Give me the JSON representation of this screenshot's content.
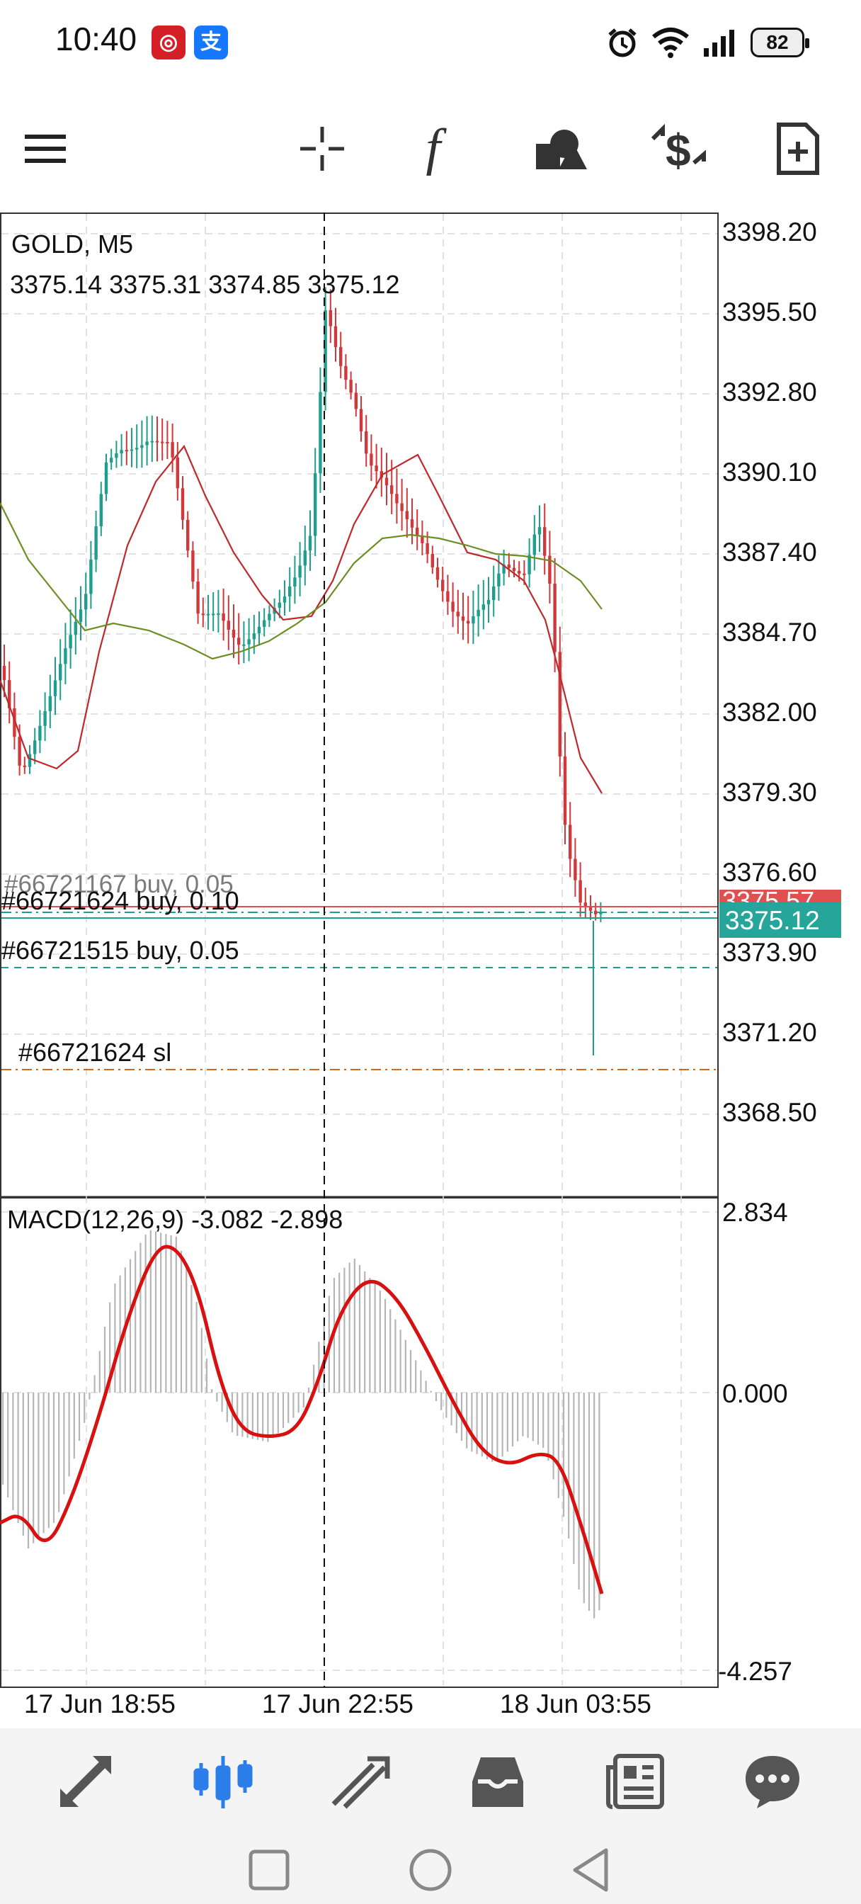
{
  "status_bar": {
    "time": "10:40",
    "app_badges": [
      {
        "glyph": "⊙",
        "color": "#d41f26",
        "icon": "union-pay-app-icon"
      },
      {
        "glyph": "支",
        "color": "#1677ff",
        "icon": "alipay-app-icon"
      }
    ],
    "battery": "82"
  },
  "toolbar": {
    "items": [
      "menu-icon",
      "crosshair-icon",
      "indicators-icon",
      "objects-icon",
      "trade-icon",
      "new-order-icon"
    ]
  },
  "chart": {
    "symbol_label": "GOLD, M5",
    "ohlc_label": "3375.14 3375.31 3374.85 3375.12",
    "price_axis_ticks": [
      "3398.20",
      "3395.50",
      "3392.80",
      "3390.10",
      "3387.40",
      "3384.70",
      "3382.00",
      "3379.30",
      "3376.60",
      "3373.90",
      "3371.20",
      "3368.50"
    ],
    "ask_label": "3375.57",
    "bid_label": "3375.12",
    "order_labels": [
      "#66721167 buy, 0.05",
      "#66721624 buy, 0.10",
      "#66721515 buy, 0.05",
      "#66721624 sl"
    ],
    "time_axis_ticks": [
      "17 Jun 18:55",
      "17 Jun 22:55",
      "18 Jun 03:55"
    ],
    "colors": {
      "bull": "#1f9e8f",
      "bear": "#d0393b",
      "ma_fast": "#c0282b",
      "ma_slow": "#6b8e23",
      "macd_signal": "#d91010",
      "macd_hist": "#b5b5b5",
      "ask_bg": "#e05050",
      "bid_bg": "#26a69a",
      "sl_line": "#d2691e",
      "grid": "#d9d9d9"
    }
  },
  "macd": {
    "label": "MACD(12,26,9) -3.082 -2.898",
    "axis_ticks": [
      "2.834",
      "0.000",
      "-4.257"
    ]
  },
  "bottom_nav": {
    "items": [
      "quotes-icon",
      "chart-icon",
      "trade-icon",
      "history-icon",
      "news-icon",
      "chat-icon"
    ],
    "active_index": 1
  },
  "system_nav": [
    "recent-apps-icon",
    "home-icon",
    "back-icon"
  ]
}
